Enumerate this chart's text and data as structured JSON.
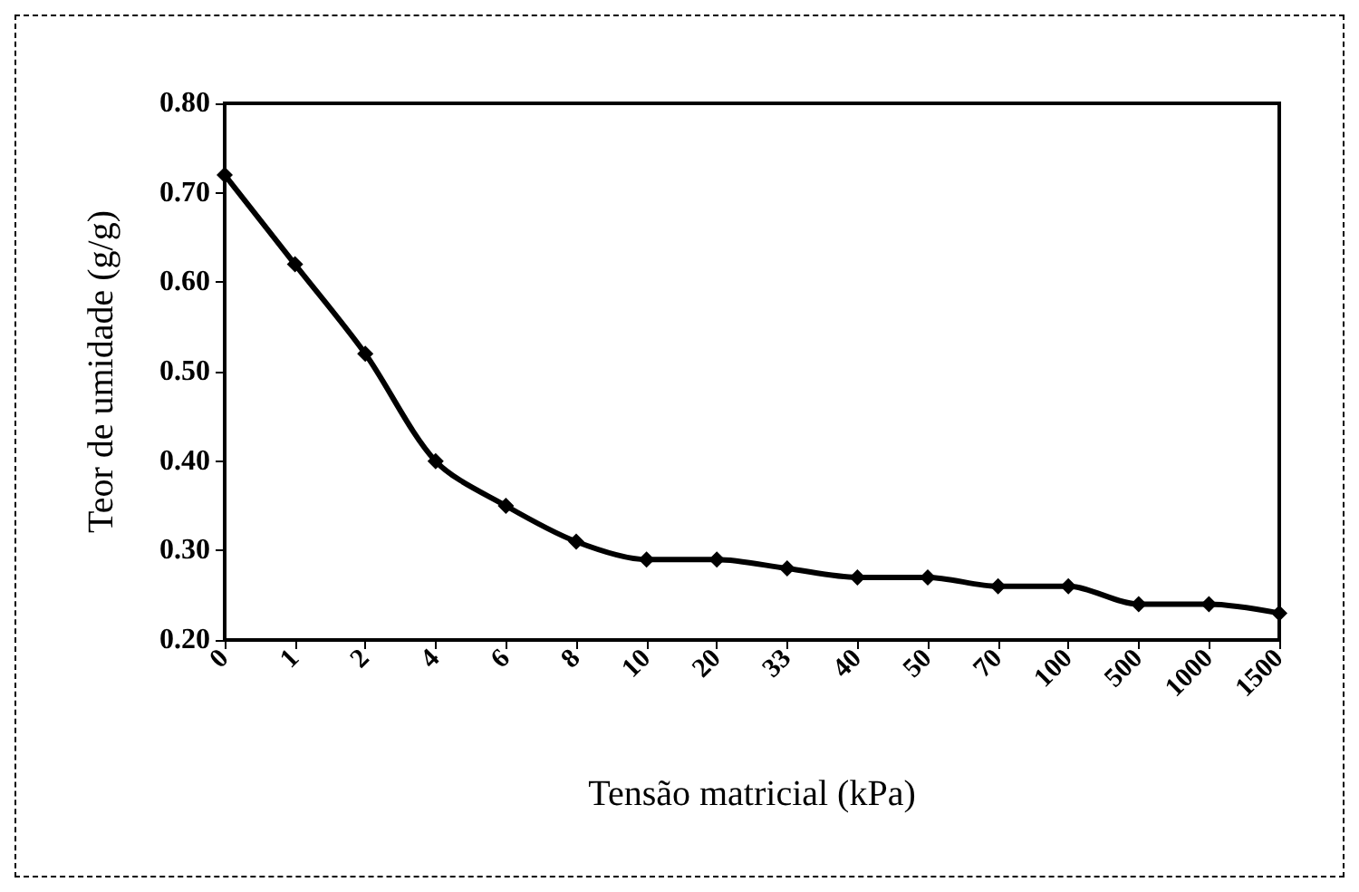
{
  "chart_data": {
    "type": "line",
    "xlabel": "Tensão matricial (kPa)",
    "ylabel": "Teor de umidade (g/g)",
    "categories": [
      "0",
      "1",
      "2",
      "4",
      "6",
      "8",
      "10",
      "20",
      "33",
      "40",
      "50",
      "70",
      "100",
      "500",
      "1000",
      "1500"
    ],
    "series": [
      {
        "color": "#000000",
        "values": [
          0.72,
          0.62,
          0.52,
          0.4,
          0.35,
          0.31,
          0.29,
          0.29,
          0.28,
          0.27,
          0.27,
          0.26,
          0.26,
          0.24,
          0.24,
          0.23
        ]
      }
    ],
    "ylim": [
      0.2,
      0.8
    ],
    "yticks": [
      {
        "value": 0.2,
        "label": "0.20"
      },
      {
        "value": 0.3,
        "label": "0.30"
      },
      {
        "value": 0.4,
        "label": "0.40"
      },
      {
        "value": 0.5,
        "label": "0.50"
      },
      {
        "value": 0.6,
        "label": "0.60"
      },
      {
        "value": 0.7,
        "label": "0.70"
      },
      {
        "value": 0.8,
        "label": "0.80"
      }
    ],
    "grid": false,
    "marker": "diamond",
    "line_style": "solid"
  }
}
